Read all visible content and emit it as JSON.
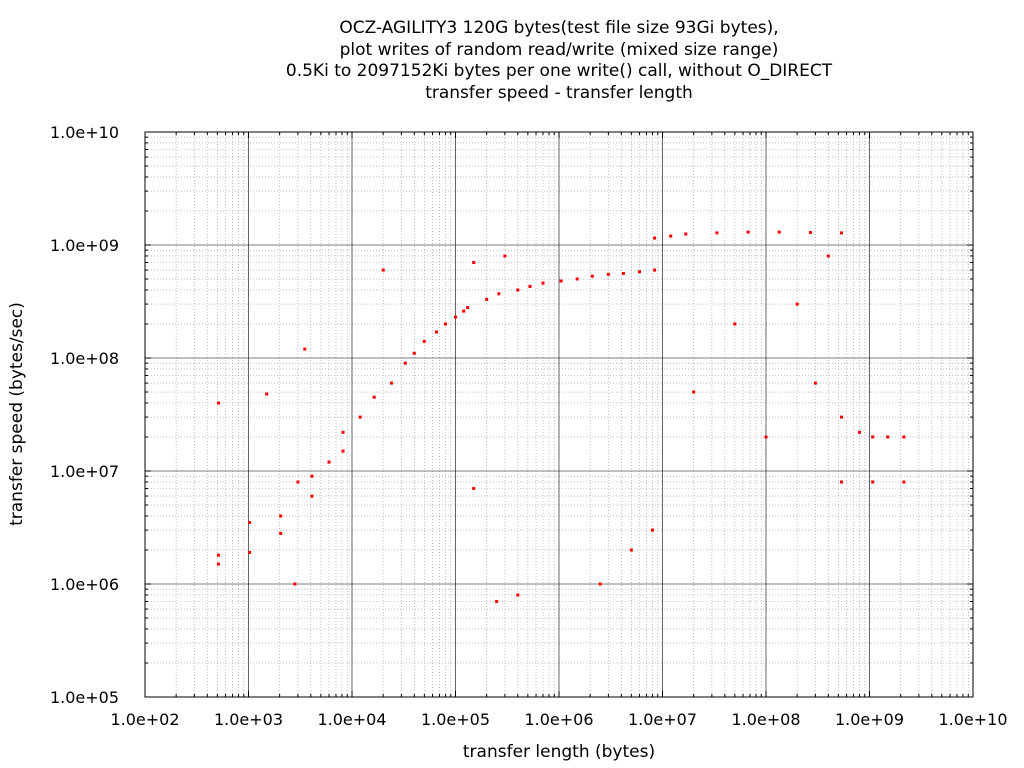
{
  "chart_data": {
    "type": "scatter",
    "title_lines": [
      "OCZ-AGILITY3 120G bytes(test file size 93Gi bytes),",
      "plot writes of random read/write (mixed size range)",
      "0.5Ki to 2097152Ki bytes per one write() call, without O_DIRECT",
      "transfer speed - transfer length"
    ],
    "xlabel": "transfer length (bytes)",
    "ylabel": "transfer speed (bytes/sec)",
    "x_scale": "log",
    "y_scale": "log",
    "xlim": [
      100,
      10000000000
    ],
    "ylim": [
      100000,
      10000000000
    ],
    "x_ticks": [
      "1.0e+02",
      "1.0e+03",
      "1.0e+04",
      "1.0e+05",
      "1.0e+06",
      "1.0e+07",
      "1.0e+08",
      "1.0e+09",
      "1.0e+10"
    ],
    "y_ticks": [
      "1.0e+05",
      "1.0e+06",
      "1.0e+07",
      "1.0e+08",
      "1.0e+09",
      "1.0e+10"
    ],
    "grid": true,
    "marker_color": "#ff0000",
    "series": [
      {
        "points": [
          [
            512,
            1800000
          ],
          [
            512,
            1500000
          ],
          [
            512,
            40000000
          ],
          [
            1024,
            3500000
          ],
          [
            1024,
            1900000
          ],
          [
            1500,
            48000000
          ],
          [
            2048,
            2800000
          ],
          [
            2048,
            4000000
          ],
          [
            2800,
            1000000
          ],
          [
            3000,
            8000000
          ],
          [
            3500,
            120000000
          ],
          [
            4096,
            9000000
          ],
          [
            4096,
            6000000
          ],
          [
            6000,
            12000000
          ],
          [
            8192,
            22000000
          ],
          [
            8192,
            15000000
          ],
          [
            12000,
            30000000
          ],
          [
            16384,
            45000000
          ],
          [
            20000,
            600000000
          ],
          [
            24000,
            60000000
          ],
          [
            32768,
            90000000
          ],
          [
            40000,
            110000000
          ],
          [
            50000,
            140000000
          ],
          [
            65536,
            170000000
          ],
          [
            80000,
            200000000
          ],
          [
            100000,
            230000000
          ],
          [
            120000,
            260000000
          ],
          [
            131072,
            280000000
          ],
          [
            150000,
            700000000
          ],
          [
            200000,
            330000000
          ],
          [
            262144,
            370000000
          ],
          [
            300000,
            800000000
          ],
          [
            400000,
            400000000
          ],
          [
            524288,
            430000000
          ],
          [
            700000,
            460000000
          ],
          [
            1048576,
            480000000
          ],
          [
            1500000,
            500000000
          ],
          [
            2097152,
            530000000
          ],
          [
            3000000,
            550000000
          ],
          [
            4194304,
            560000000
          ],
          [
            6000000,
            580000000
          ],
          [
            8388608,
            600000000
          ],
          [
            8388608,
            1150000000
          ],
          [
            12000000,
            1200000000
          ],
          [
            16777216,
            1250000000
          ],
          [
            33554432,
            1280000000
          ],
          [
            67108864,
            1300000000
          ],
          [
            134217728,
            1300000000
          ],
          [
            268435456,
            1290000000
          ],
          [
            536870912,
            1280000000
          ],
          [
            536870912,
            30000000
          ],
          [
            800000000,
            22000000
          ],
          [
            1073741824,
            20000000
          ],
          [
            1500000000,
            20000000
          ],
          [
            2147483648,
            20000000
          ],
          [
            536870912,
            8000000
          ],
          [
            1073741824,
            8000000
          ],
          [
            2147483648,
            8000000
          ],
          [
            150000,
            7000000
          ],
          [
            250000,
            700000
          ],
          [
            400000,
            800000
          ],
          [
            2500000,
            1000000
          ],
          [
            5000000,
            2000000
          ],
          [
            8000000,
            3000000
          ],
          [
            20000000,
            50000000
          ],
          [
            50000000,
            200000000
          ],
          [
            100000000,
            20000000
          ],
          [
            200000000,
            300000000
          ],
          [
            300000000,
            60000000
          ],
          [
            400000000,
            800000000
          ]
        ]
      }
    ]
  }
}
